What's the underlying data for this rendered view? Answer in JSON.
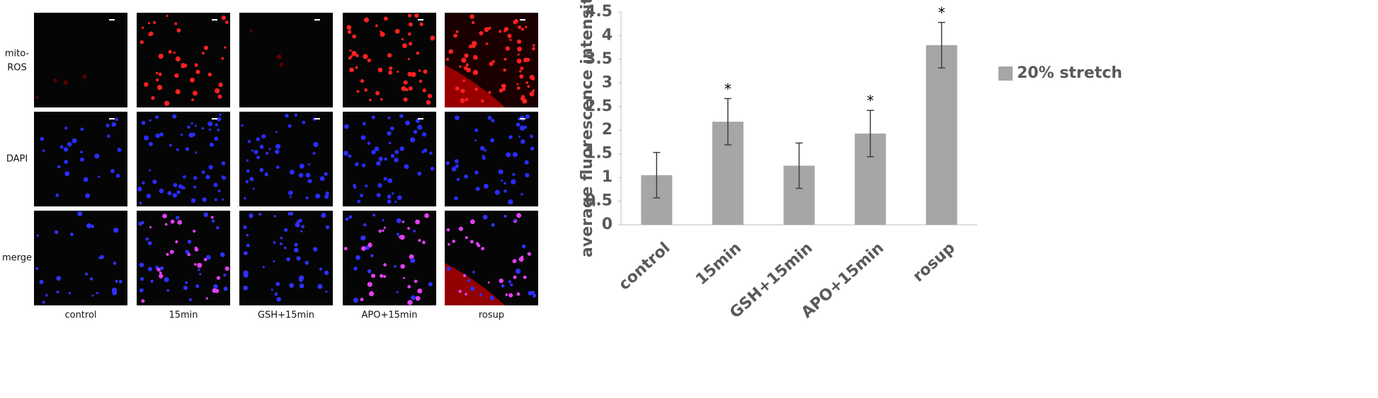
{
  "image_panel": {
    "row_labels": [
      [
        "mito-",
        "ROS"
      ],
      [
        "DAPI"
      ],
      [
        "merge"
      ]
    ],
    "column_labels": [
      "control",
      "15min",
      "GSH+15min",
      "APO+15min",
      "rosup"
    ]
  },
  "chart_data": {
    "type": "bar",
    "y_label": "average fluorescence intensity",
    "categories": [
      "control",
      "15min",
      "GSH+15min",
      "APO+15min",
      "rosup"
    ],
    "series": [
      {
        "name": "20% stretch",
        "color": "#a6a6a6",
        "values": [
          1.05,
          2.18,
          1.25,
          1.93,
          3.8
        ],
        "errors": [
          0.48,
          0.49,
          0.48,
          0.49,
          0.48
        ]
      }
    ],
    "annotations": [
      null,
      "*",
      null,
      "*",
      "*"
    ],
    "ylim": [
      0,
      4.5
    ],
    "yticks": [
      0,
      0.5,
      1,
      1.5,
      2,
      2.5,
      3,
      3.5,
      4,
      4.5
    ],
    "legend": "right",
    "grid": false
  }
}
